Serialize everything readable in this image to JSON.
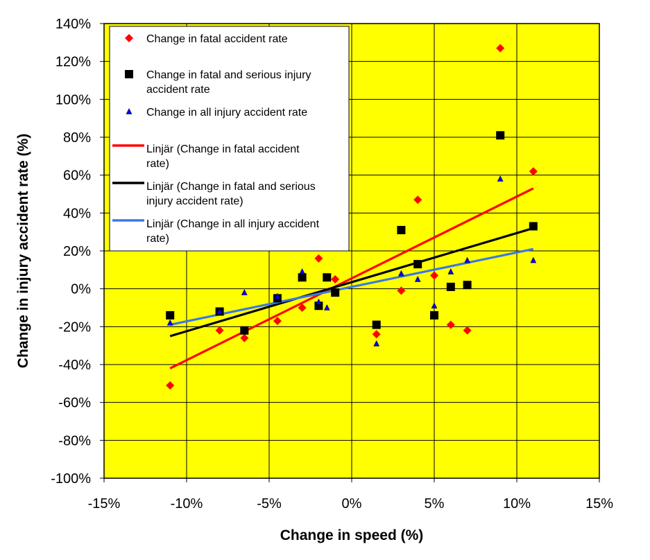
{
  "chart_data": {
    "type": "scatter",
    "xlabel": "Change in speed (%)",
    "ylabel": "Change in injury accident rate (%)",
    "xlim": [
      -15,
      15
    ],
    "ylim": [
      -100,
      140
    ],
    "x_ticks": [
      "-15%",
      "-10%",
      "-5%",
      "0%",
      "5%",
      "10%",
      "15%"
    ],
    "y_ticks": [
      "-100%",
      "-80%",
      "-60%",
      "-40%",
      "-20%",
      "0%",
      "20%",
      "40%",
      "60%",
      "80%",
      "100%",
      "120%",
      "140%"
    ],
    "x_tick_values": [
      -15,
      -10,
      -5,
      0,
      5,
      10,
      15
    ],
    "y_tick_values": [
      -100,
      -80,
      -60,
      -40,
      -20,
      0,
      20,
      40,
      60,
      80,
      100,
      120,
      140
    ],
    "grid": true,
    "plot_background": "#ffff00",
    "legend_position": "top-left",
    "series": [
      {
        "name": "Change in fatal accident rate",
        "marker": "diamond",
        "color": "#ff0000",
        "points": [
          [
            -11,
            -51
          ],
          [
            -8,
            -22
          ],
          [
            -6.5,
            -26
          ],
          [
            -4.5,
            -17
          ],
          [
            -3,
            -10
          ],
          [
            -2,
            16
          ],
          [
            -1,
            5
          ],
          [
            1.5,
            -24
          ],
          [
            3,
            -1
          ],
          [
            4,
            47
          ],
          [
            5,
            7
          ],
          [
            6,
            -19
          ],
          [
            7,
            -22
          ],
          [
            9,
            127
          ],
          [
            11,
            62
          ]
        ]
      },
      {
        "name": "Change in fatal and serious injury accident rate",
        "marker": "square",
        "color": "#000000",
        "points": [
          [
            -11,
            -14
          ],
          [
            -8,
            -12
          ],
          [
            -6.5,
            -22
          ],
          [
            -4.5,
            -5
          ],
          [
            -3,
            6
          ],
          [
            -2,
            -9
          ],
          [
            -1.5,
            6
          ],
          [
            -1,
            -2
          ],
          [
            1.5,
            -19
          ],
          [
            3,
            31
          ],
          [
            4,
            13
          ],
          [
            5,
            -14
          ],
          [
            6,
            1
          ],
          [
            7,
            2
          ],
          [
            9,
            81
          ],
          [
            11,
            33
          ]
        ]
      },
      {
        "name": "Change in all injury accident rate",
        "marker": "triangle",
        "color": "#0000ff",
        "points": [
          [
            -11,
            -18
          ],
          [
            -8,
            -12
          ],
          [
            -6.5,
            -2
          ],
          [
            -4.5,
            -4
          ],
          [
            -3,
            9
          ],
          [
            -2,
            -7
          ],
          [
            -1.5,
            -10
          ],
          [
            1.5,
            -29
          ],
          [
            3,
            8
          ],
          [
            4,
            5
          ],
          [
            5,
            -9
          ],
          [
            6,
            9
          ],
          [
            7,
            15
          ],
          [
            9,
            58
          ],
          [
            11,
            15
          ]
        ]
      }
    ],
    "trendlines": [
      {
        "name": "Linjär (Change in fatal accident rate)",
        "color": "#ff0000",
        "x": [
          -11,
          11
        ],
        "y": [
          -42,
          53
        ]
      },
      {
        "name": "Linjär (Change in fatal and serious injury accident rate)",
        "color": "#000000",
        "x": [
          -11,
          11
        ],
        "y": [
          -25,
          32
        ]
      },
      {
        "name": "Linjär (Change in all injury accident rate)",
        "color": "#3b78e7",
        "x": [
          -11,
          11
        ],
        "y": [
          -19,
          21
        ]
      }
    ],
    "legend": [
      {
        "kind": "marker",
        "marker": "diamond",
        "color": "#ff0000",
        "lines": [
          "Change in fatal accident rate"
        ]
      },
      {
        "kind": "marker",
        "marker": "square",
        "color": "#000000",
        "lines": [
          "Change in fatal and serious injury",
          "accident rate"
        ]
      },
      {
        "kind": "marker",
        "marker": "triangle",
        "color": "#0000ff",
        "lines": [
          "Change in all injury accident rate"
        ]
      },
      {
        "kind": "line",
        "color": "#ff0000",
        "lines": [
          "Linjär (Change in fatal accident",
          "rate)"
        ]
      },
      {
        "kind": "line",
        "color": "#000000",
        "lines": [
          "Linjär (Change in fatal and serious",
          "injury accident rate)"
        ]
      },
      {
        "kind": "line",
        "color": "#3b78e7",
        "lines": [
          "Linjär (Change in all injury accident",
          "rate)"
        ]
      }
    ]
  }
}
